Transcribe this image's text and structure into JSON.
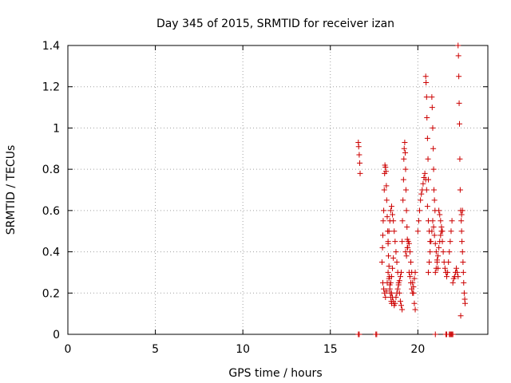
{
  "chart_data": {
    "type": "scatter",
    "title": "Day 345 of 2015, SRMTID for receiver izan",
    "xlabel": "GPS time / hours",
    "ylabel": "SRMTID / TECUs",
    "xlim": [
      0,
      24
    ],
    "ylim": [
      0,
      1.4
    ],
    "xticks": [
      "0",
      "5",
      "10",
      "15",
      "20"
    ],
    "xtick_values": [
      0,
      5,
      10,
      15,
      20
    ],
    "yticks": [
      "0",
      "0.2",
      "0.4",
      "0.6",
      "0.8",
      "1",
      "1.2",
      "1.4"
    ],
    "ytick_values": [
      0,
      0.2,
      0.4,
      0.6,
      0.8,
      1.0,
      1.2,
      1.4
    ],
    "grid": true,
    "marker": "plus",
    "color": "#cc0000",
    "series": [
      {
        "name": "SRMTID",
        "points": [
          [
            16.6,
            0.0
          ],
          [
            16.65,
            0.0
          ],
          [
            17.6,
            0.0
          ],
          [
            17.65,
            0.0
          ],
          [
            16.6,
            0.93
          ],
          [
            16.62,
            0.91
          ],
          [
            16.65,
            0.87
          ],
          [
            16.68,
            0.83
          ],
          [
            16.7,
            0.78
          ],
          [
            17.95,
            0.35
          ],
          [
            17.98,
            0.42
          ],
          [
            18.0,
            0.48
          ],
          [
            18.02,
            0.55
          ],
          [
            18.05,
            0.6
          ],
          [
            18.08,
            0.7
          ],
          [
            18.1,
            0.78
          ],
          [
            18.12,
            0.82
          ],
          [
            18.15,
            0.81
          ],
          [
            18.18,
            0.79
          ],
          [
            18.2,
            0.72
          ],
          [
            18.22,
            0.65
          ],
          [
            18.25,
            0.57
          ],
          [
            18.28,
            0.5
          ],
          [
            18.3,
            0.44
          ],
          [
            18.32,
            0.38
          ],
          [
            18.35,
            0.33
          ],
          [
            18.38,
            0.28
          ],
          [
            18.4,
            0.24
          ],
          [
            18.42,
            0.2
          ],
          [
            18.45,
            0.18
          ],
          [
            18.48,
            0.16
          ],
          [
            18.5,
            0.15
          ],
          [
            18.0,
            0.25
          ],
          [
            18.05,
            0.22
          ],
          [
            18.1,
            0.2
          ],
          [
            18.15,
            0.18
          ],
          [
            18.2,
            0.21
          ],
          [
            18.25,
            0.25
          ],
          [
            18.3,
            0.3
          ],
          [
            18.35,
            0.27
          ],
          [
            18.4,
            0.22
          ],
          [
            18.45,
            0.25
          ],
          [
            18.5,
            0.28
          ],
          [
            18.55,
            0.32
          ],
          [
            18.6,
            0.37
          ],
          [
            18.3,
            0.45
          ],
          [
            18.35,
            0.5
          ],
          [
            18.4,
            0.55
          ],
          [
            18.45,
            0.6
          ],
          [
            18.5,
            0.62
          ],
          [
            18.55,
            0.58
          ],
          [
            18.6,
            0.55
          ],
          [
            18.65,
            0.5
          ],
          [
            18.7,
            0.45
          ],
          [
            18.75,
            0.4
          ],
          [
            18.8,
            0.35
          ],
          [
            18.85,
            0.3
          ],
          [
            18.9,
            0.25
          ],
          [
            18.95,
            0.2
          ],
          [
            19.0,
            0.16
          ],
          [
            19.05,
            0.14
          ],
          [
            19.1,
            0.12
          ],
          [
            18.5,
            0.2
          ],
          [
            18.55,
            0.18
          ],
          [
            18.6,
            0.16
          ],
          [
            18.65,
            0.14
          ],
          [
            18.7,
            0.15
          ],
          [
            18.75,
            0.18
          ],
          [
            18.8,
            0.2
          ],
          [
            18.85,
            0.22
          ],
          [
            18.9,
            0.24
          ],
          [
            18.95,
            0.26
          ],
          [
            19.0,
            0.28
          ],
          [
            19.05,
            0.3
          ],
          [
            19.1,
            0.45
          ],
          [
            19.12,
            0.55
          ],
          [
            19.15,
            0.65
          ],
          [
            19.18,
            0.75
          ],
          [
            19.2,
            0.85
          ],
          [
            19.22,
            0.9
          ],
          [
            19.25,
            0.93
          ],
          [
            19.28,
            0.88
          ],
          [
            19.3,
            0.8
          ],
          [
            19.32,
            0.7
          ],
          [
            19.35,
            0.6
          ],
          [
            19.38,
            0.52
          ],
          [
            19.4,
            0.46
          ],
          [
            19.42,
            0.42
          ],
          [
            19.3,
            0.4
          ],
          [
            19.35,
            0.38
          ],
          [
            19.4,
            0.42
          ],
          [
            19.45,
            0.45
          ],
          [
            19.5,
            0.44
          ],
          [
            19.55,
            0.4
          ],
          [
            19.6,
            0.35
          ],
          [
            19.65,
            0.3
          ],
          [
            19.7,
            0.25
          ],
          [
            19.75,
            0.2
          ],
          [
            19.8,
            0.15
          ],
          [
            19.85,
            0.12
          ],
          [
            19.5,
            0.3
          ],
          [
            19.55,
            0.28
          ],
          [
            19.6,
            0.25
          ],
          [
            19.65,
            0.22
          ],
          [
            19.7,
            0.2
          ],
          [
            19.75,
            0.23
          ],
          [
            19.8,
            0.27
          ],
          [
            19.85,
            0.3
          ],
          [
            20.0,
            0.5
          ],
          [
            20.05,
            0.55
          ],
          [
            20.1,
            0.6
          ],
          [
            20.15,
            0.65
          ],
          [
            20.2,
            0.68
          ],
          [
            20.25,
            0.7
          ],
          [
            20.3,
            0.73
          ],
          [
            20.35,
            0.76
          ],
          [
            20.4,
            0.78
          ],
          [
            20.45,
            0.75
          ],
          [
            20.5,
            0.7
          ],
          [
            20.55,
            0.62
          ],
          [
            20.6,
            0.55
          ],
          [
            20.65,
            0.5
          ],
          [
            20.7,
            0.45
          ],
          [
            20.45,
            1.25
          ],
          [
            20.47,
            1.22
          ],
          [
            20.5,
            1.15
          ],
          [
            20.52,
            1.05
          ],
          [
            20.55,
            0.95
          ],
          [
            20.58,
            0.85
          ],
          [
            20.6,
            0.75
          ],
          [
            20.8,
            1.15
          ],
          [
            20.82,
            1.1
          ],
          [
            20.85,
            1.0
          ],
          [
            20.88,
            0.9
          ],
          [
            20.9,
            0.8
          ],
          [
            20.92,
            0.7
          ],
          [
            20.95,
            0.65
          ],
          [
            20.98,
            0.6
          ],
          [
            20.6,
            0.3
          ],
          [
            20.65,
            0.35
          ],
          [
            20.7,
            0.4
          ],
          [
            20.75,
            0.45
          ],
          [
            20.8,
            0.5
          ],
          [
            20.85,
            0.55
          ],
          [
            20.9,
            0.52
          ],
          [
            20.95,
            0.48
          ],
          [
            21.0,
            0.44
          ],
          [
            21.05,
            0.4
          ],
          [
            21.1,
            0.36
          ],
          [
            21.15,
            0.32
          ],
          [
            21.0,
            0.3
          ],
          [
            21.05,
            0.32
          ],
          [
            21.1,
            0.35
          ],
          [
            21.15,
            0.38
          ],
          [
            21.2,
            0.42
          ],
          [
            21.25,
            0.45
          ],
          [
            21.3,
            0.48
          ],
          [
            21.35,
            0.5
          ],
          [
            21.4,
            0.45
          ],
          [
            21.45,
            0.4
          ],
          [
            21.5,
            0.35
          ],
          [
            21.55,
            0.32
          ],
          [
            21.6,
            0.3
          ],
          [
            21.65,
            0.28
          ],
          [
            21.7,
            0.3
          ],
          [
            21.75,
            0.35
          ],
          [
            21.8,
            0.4
          ],
          [
            21.85,
            0.45
          ],
          [
            21.9,
            0.5
          ],
          [
            21.95,
            0.55
          ],
          [
            21.2,
            0.6
          ],
          [
            21.25,
            0.58
          ],
          [
            21.3,
            0.55
          ],
          [
            21.35,
            0.52
          ],
          [
            21.4,
            0.5
          ],
          [
            21.0,
            0.0
          ],
          [
            21.6,
            0.0
          ],
          [
            21.65,
            0.0
          ],
          [
            21.8,
            0.0
          ],
          [
            21.85,
            0.0
          ],
          [
            21.9,
            0.0
          ],
          [
            21.95,
            0.0
          ],
          [
            22.0,
            0.0
          ],
          [
            22.0,
            0.25
          ],
          [
            22.05,
            0.27
          ],
          [
            22.1,
            0.28
          ],
          [
            22.15,
            0.3
          ],
          [
            22.2,
            0.32
          ],
          [
            22.25,
            0.3
          ],
          [
            22.3,
            0.28
          ],
          [
            22.3,
            1.4
          ],
          [
            22.32,
            1.35
          ],
          [
            22.34,
            1.25
          ],
          [
            22.36,
            1.12
          ],
          [
            22.38,
            1.02
          ],
          [
            22.4,
            0.85
          ],
          [
            22.42,
            0.7
          ],
          [
            22.45,
            0.6
          ],
          [
            22.48,
            0.55
          ],
          [
            22.5,
            0.5
          ],
          [
            22.52,
            0.45
          ],
          [
            22.55,
            0.4
          ],
          [
            22.58,
            0.35
          ],
          [
            22.6,
            0.3
          ],
          [
            22.62,
            0.25
          ],
          [
            22.65,
            0.2
          ],
          [
            22.68,
            0.17
          ],
          [
            22.7,
            0.15
          ],
          [
            22.45,
            0.09
          ],
          [
            22.5,
            0.58
          ],
          [
            22.55,
            0.6
          ]
        ]
      }
    ]
  }
}
